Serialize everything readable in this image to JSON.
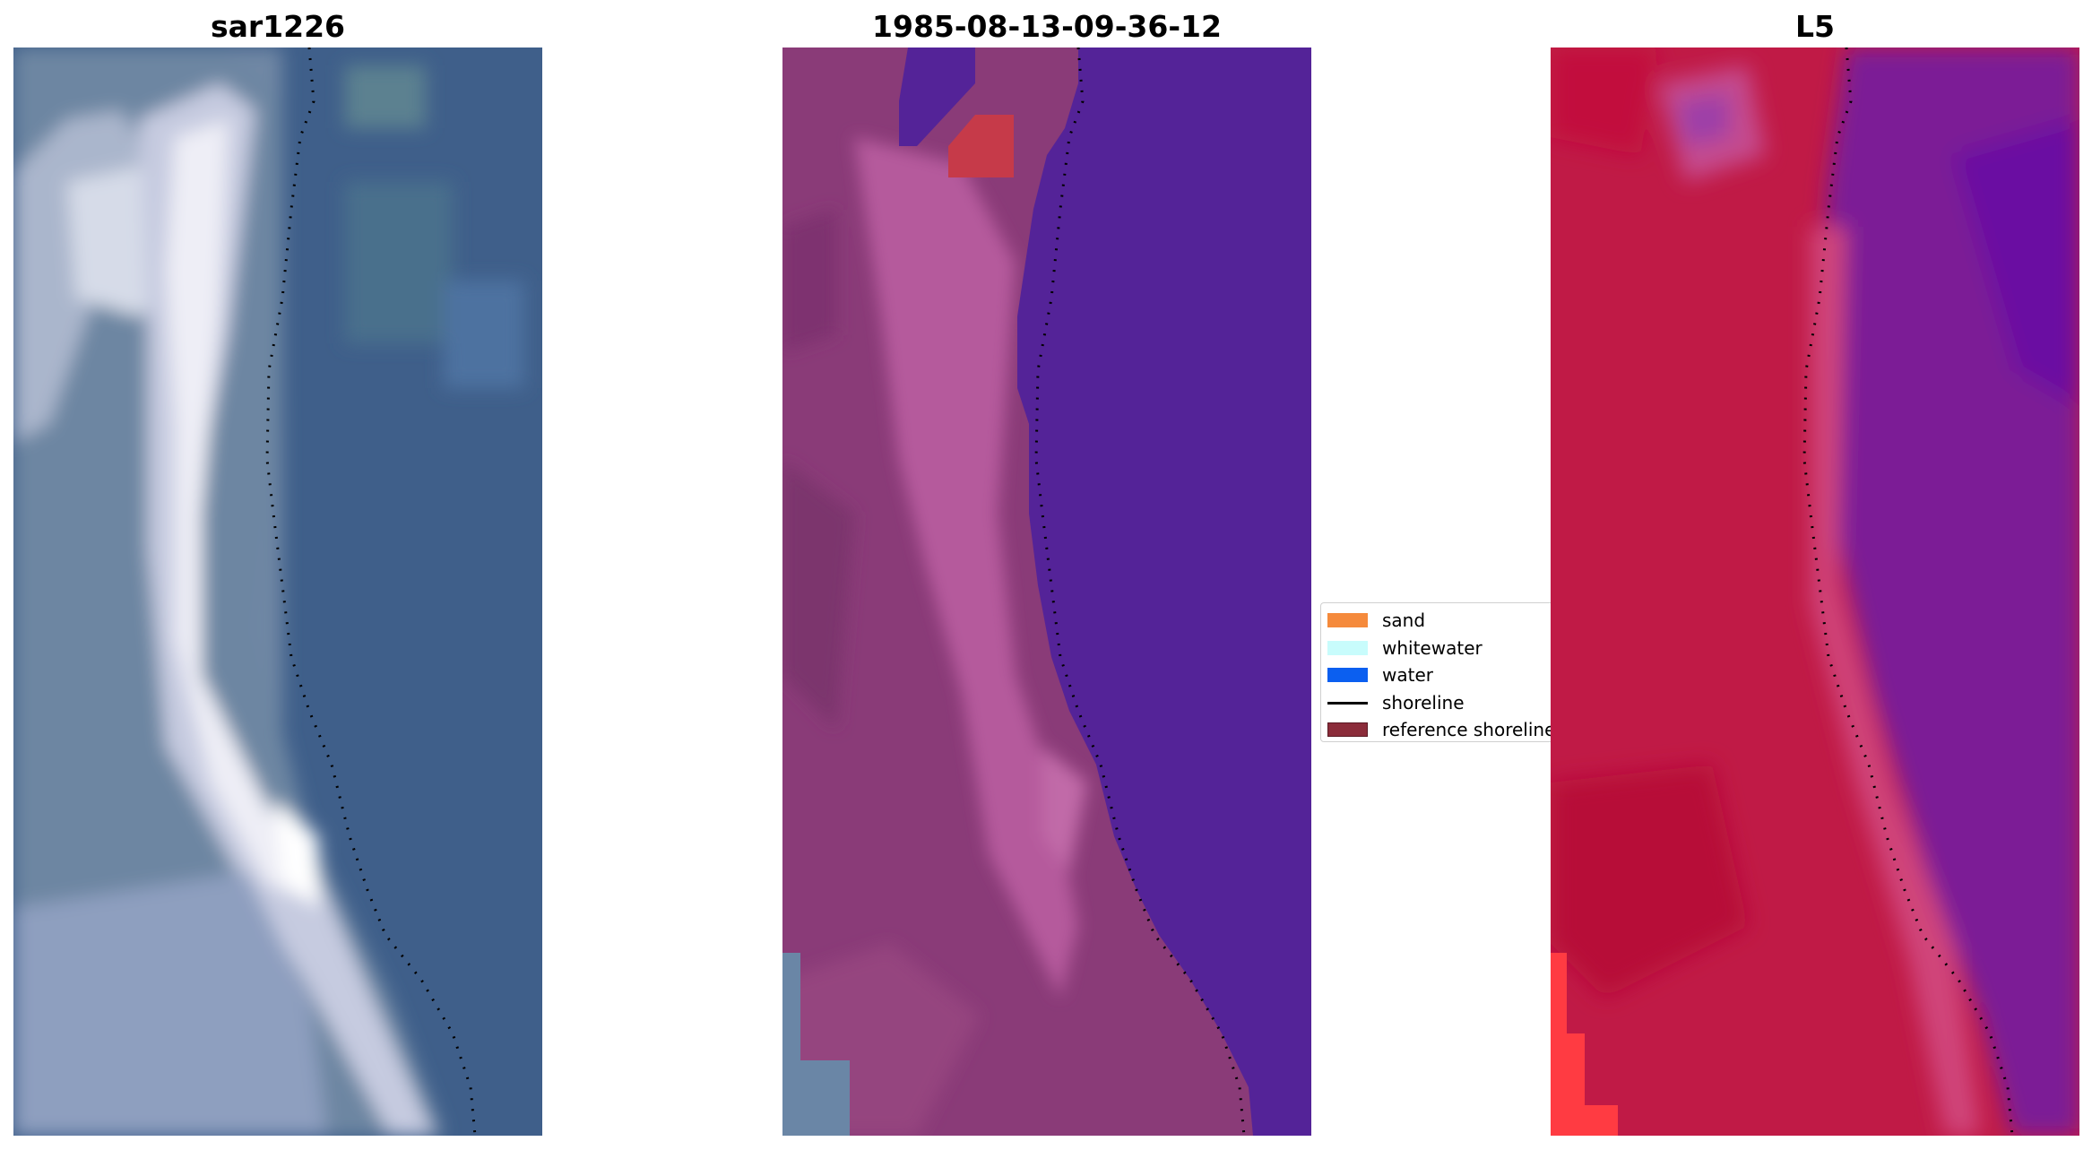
{
  "panels": [
    {
      "title": "sar1226"
    },
    {
      "title": "1985-08-13-09-36-12"
    },
    {
      "title": "L5"
    }
  ],
  "legend": {
    "items": [
      {
        "label": "sand",
        "color": "#f58a3c"
      },
      {
        "label": "whitewater",
        "color": "#c8fcfc"
      },
      {
        "label": "water",
        "color": "#0b5ff0"
      },
      {
        "label": "shoreline",
        "color": "#000000"
      },
      {
        "label": "reference shoreline",
        "color": "#8b2c3a"
      }
    ]
  }
}
